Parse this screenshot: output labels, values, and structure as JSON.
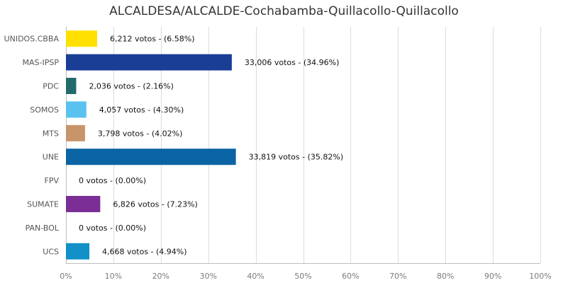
{
  "chart_data": {
    "type": "bar",
    "orientation": "horizontal",
    "title": "ALCALDESA/ALCALDE-Cochabamba-Quillacollo-Quillacollo",
    "categories": [
      "UNIDOS.CBBA",
      "MAS-IPSP",
      "PDC",
      "SOMOS",
      "MTS",
      "UNE",
      "FPV",
      "SUMATE",
      "PAN-BOL",
      "UCS"
    ],
    "values": [
      6.58,
      34.96,
      2.16,
      4.3,
      4.02,
      35.82,
      0.0,
      7.23,
      0.0,
      4.94
    ],
    "votes": [
      6212,
      33006,
      2036,
      4057,
      3798,
      33819,
      0,
      6826,
      0,
      4668
    ],
    "data_labels": [
      "6,212 votos - (6.58%)",
      "33,006 votos - (34.96%)",
      "2,036 votos - (2.16%)",
      "4,057 votos - (4.30%)",
      "3,798 votos - (4.02%)",
      "33,819 votos - (35.82%)",
      "0 votos - (0.00%)",
      "6,826 votos - (7.23%)",
      "0 votos - (0.00%)",
      "4,668 votos - (4.94%)"
    ],
    "colors": [
      "#FFE000",
      "#1A3E96",
      "#236B6A",
      "#5BC2F0",
      "#C8946A",
      "#0A64A4",
      "#cccccc",
      "#7A2E96",
      "#cccccc",
      "#1290C8"
    ],
    "xlim": [
      0,
      100
    ],
    "xticks": [
      "0%",
      "10%",
      "20%",
      "30%",
      "40%",
      "50%",
      "60%",
      "70%",
      "80%",
      "90%",
      "100%"
    ],
    "xlabel": "",
    "ylabel": "",
    "grid": "vertical"
  }
}
